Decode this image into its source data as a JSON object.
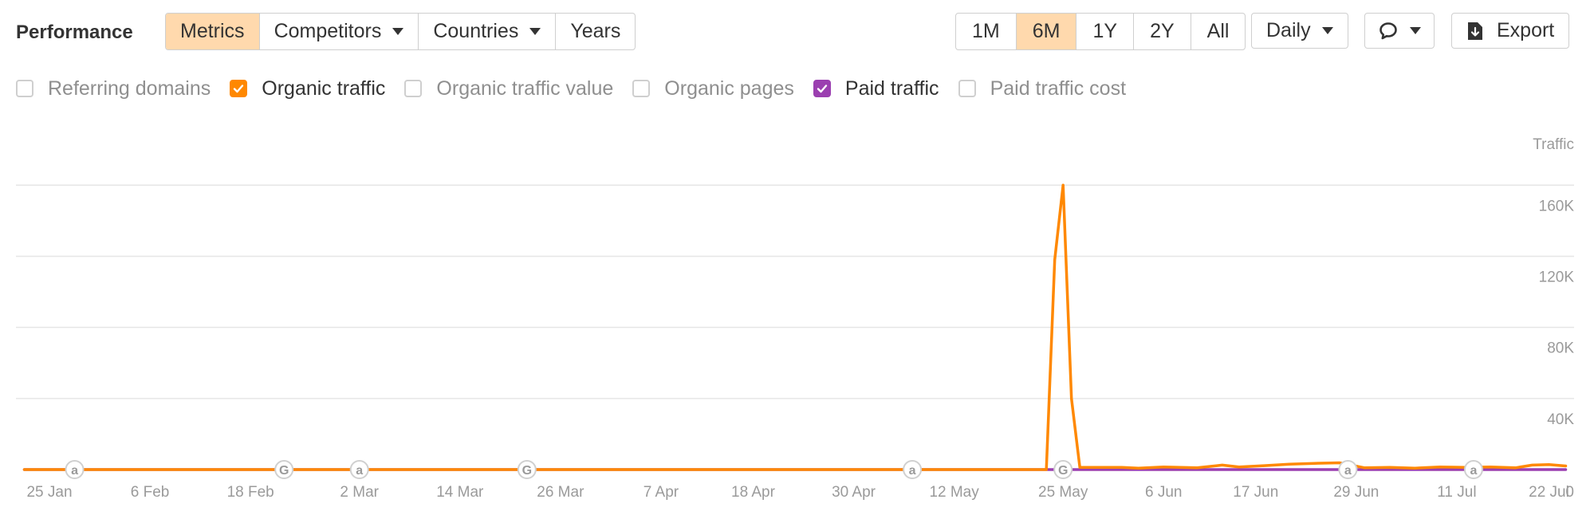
{
  "header": {
    "title": "Performance",
    "tabs": [
      {
        "label": "Metrics",
        "active": true,
        "dropdown": false
      },
      {
        "label": "Competitors",
        "active": false,
        "dropdown": true
      },
      {
        "label": "Countries",
        "active": false,
        "dropdown": true
      },
      {
        "label": "Years",
        "active": false,
        "dropdown": false
      }
    ],
    "ranges": [
      {
        "label": "1M",
        "active": false
      },
      {
        "label": "6M",
        "active": true
      },
      {
        "label": "1Y",
        "active": false
      },
      {
        "label": "2Y",
        "active": false
      },
      {
        "label": "All",
        "active": false
      }
    ],
    "interval": "Daily",
    "comment_icon": "comment-icon",
    "export_label": "Export",
    "export_icon": "download-doc-icon"
  },
  "metrics": [
    {
      "label": "Referring domains",
      "checked": false,
      "color": ""
    },
    {
      "label": "Organic traffic",
      "checked": true,
      "color": "#ff8800"
    },
    {
      "label": "Organic traffic value",
      "checked": false,
      "color": ""
    },
    {
      "label": "Organic pages",
      "checked": false,
      "color": ""
    },
    {
      "label": "Paid traffic",
      "checked": true,
      "color": "#9b3fb0"
    },
    {
      "label": "Paid traffic cost",
      "checked": false,
      "color": ""
    }
  ],
  "chart_data": {
    "type": "line",
    "ylabel": "Traffic",
    "ylim": [
      0,
      170000
    ],
    "y_ticks": [
      0,
      40000,
      80000,
      120000,
      160000
    ],
    "y_tick_labels": [
      "0",
      "40K",
      "80K",
      "120K",
      "160K"
    ],
    "xlim": [
      "2024-01-21",
      "2024-07-25"
    ],
    "x_ticks": [
      "2024-01-25",
      "2024-02-06",
      "2024-02-18",
      "2024-03-02",
      "2024-03-14",
      "2024-03-26",
      "2024-04-07",
      "2024-04-18",
      "2024-04-30",
      "2024-05-12",
      "2024-05-25",
      "2024-06-06",
      "2024-06-17",
      "2024-06-29",
      "2024-07-11",
      "2024-07-22"
    ],
    "x_tick_labels": [
      "25 Jan",
      "6 Feb",
      "18 Feb",
      "2 Mar",
      "14 Mar",
      "26 Mar",
      "7 Apr",
      "18 Apr",
      "30 Apr",
      "12 May",
      "25 May",
      "6 Jun",
      "17 Jun",
      "29 Jun",
      "11 Jul",
      "22 Jul"
    ],
    "grid": true,
    "series": [
      {
        "name": "Organic traffic",
        "color": "#ff8800",
        "x": [
          "2024-01-22",
          "2024-05-23",
          "2024-05-24",
          "2024-05-25",
          "2024-05-26",
          "2024-05-27",
          "2024-06-01",
          "2024-06-03",
          "2024-06-06",
          "2024-06-10",
          "2024-06-13",
          "2024-06-15",
          "2024-06-18",
          "2024-06-21",
          "2024-06-24",
          "2024-06-27",
          "2024-06-30",
          "2024-07-03",
          "2024-07-06",
          "2024-07-09",
          "2024-07-12",
          "2024-07-15",
          "2024-07-18",
          "2024-07-20",
          "2024-07-22",
          "2024-07-24"
        ],
        "y": [
          0,
          0,
          118000,
          160000,
          40000,
          1200,
          1200,
          800,
          1500,
          1000,
          2500,
          1500,
          2200,
          3000,
          3500,
          3800,
          1000,
          1200,
          800,
          1500,
          1200,
          1500,
          1000,
          2500,
          2800,
          2000
        ]
      },
      {
        "name": "Paid traffic",
        "color": "#9b3fb0",
        "x": [
          "2024-01-22",
          "2024-07-24"
        ],
        "y": [
          0,
          0
        ]
      }
    ],
    "annotations": [
      {
        "date": "2024-01-28",
        "type": "a"
      },
      {
        "date": "2024-02-22",
        "type": "G"
      },
      {
        "date": "2024-03-02",
        "type": "a"
      },
      {
        "date": "2024-03-22",
        "type": "G"
      },
      {
        "date": "2024-05-07",
        "type": "a"
      },
      {
        "date": "2024-05-25",
        "type": "G"
      },
      {
        "date": "2024-06-28",
        "type": "a"
      },
      {
        "date": "2024-07-13",
        "type": "a"
      }
    ]
  }
}
